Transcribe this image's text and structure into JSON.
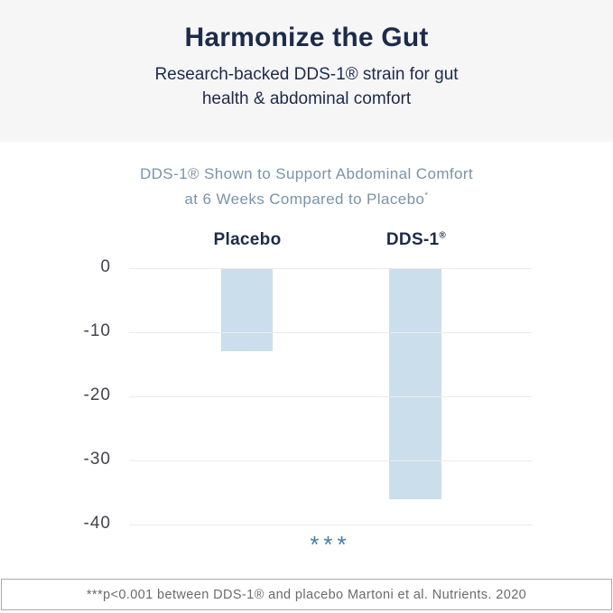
{
  "header": {
    "title": "Harmonize the Gut",
    "subtitle_line1": "Research-backed DDS-1® strain for gut",
    "subtitle_line2": "health & abdominal comfort"
  },
  "chart": {
    "title_line1": "DDS-1® Shown to Support Abdominal Comfort",
    "title_line2": "at 6 Weeks Compared to Placebo",
    "title_sup": "*",
    "significance_marker": "***"
  },
  "chart_data": {
    "type": "bar",
    "title": "DDS-1® Shown to Support Abdominal Comfort at 6 Weeks Compared to Placebo*",
    "categories": [
      "Placebo",
      "DDS-1®"
    ],
    "values": [
      -13,
      -36
    ],
    "ylim": [
      -40,
      0
    ],
    "yticks": [
      0,
      -10,
      -20,
      -30,
      -40
    ],
    "grid": true,
    "legend_position": "none",
    "bar_color": "#cbdeeb",
    "annotation": "***"
  },
  "footer": {
    "text": "***p<0.001 between DDS-1® and placebo Martoni et al. Nutrients. 2020"
  },
  "colors": {
    "navy": "#1d2b4a",
    "chart_title": "#7a94a8",
    "bar": "#cbdeeb",
    "marker": "#4b7da2",
    "header_bg": "#f6f6f7",
    "gridline": "#ebebeb",
    "footer_text": "#6b6b6b"
  }
}
